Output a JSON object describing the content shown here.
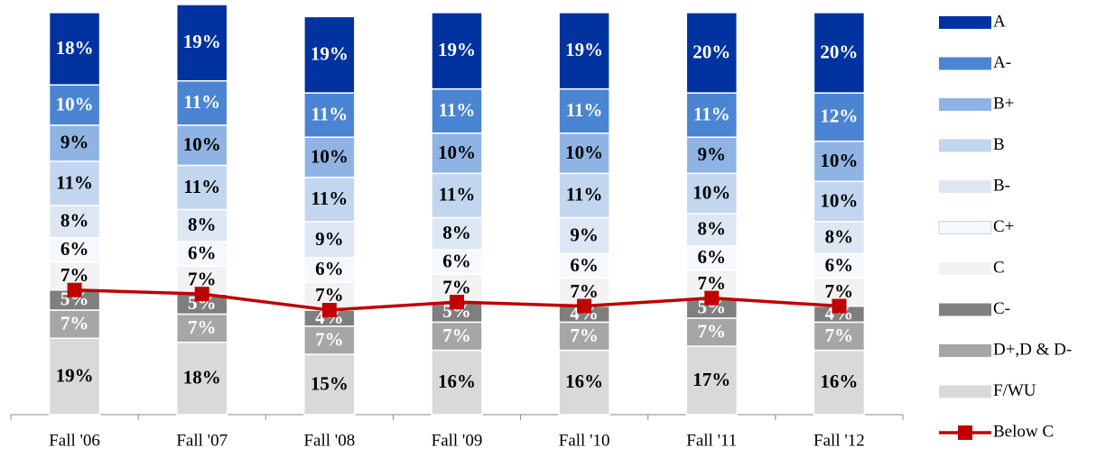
{
  "chart_data": {
    "type": "stacked_bar_line",
    "categories": [
      "Fall '06",
      "Fall '07",
      "Fall '08",
      "Fall '09",
      "Fall '10",
      "Fall '11",
      "Fall '12"
    ],
    "ylim": [
      0,
      102
    ],
    "series": [
      {
        "name": "F/WU",
        "color": "#d9d9d9",
        "label_color": "#000000",
        "values": [
          19,
          18,
          15,
          16,
          16,
          17,
          16
        ],
        "value_labels": [
          "19%",
          "18%",
          "15%",
          "16%",
          "16%",
          "17%",
          "16%"
        ]
      },
      {
        "name": "D+,D & D-",
        "color": "#a6a6a6",
        "label_color": "#ffffff",
        "values": [
          7,
          7,
          7,
          7,
          7,
          7,
          7
        ],
        "value_labels": [
          "7%",
          "7%",
          "7%",
          "7%",
          "7%",
          "7%",
          "7%"
        ]
      },
      {
        "name": "C-",
        "color": "#7f7f7f",
        "label_color": "#ffffff",
        "values": [
          5,
          5,
          4,
          5,
          4,
          5,
          4
        ],
        "value_labels": [
          "5%",
          "5%",
          "4%",
          "5%",
          "4%",
          "5%",
          "4%"
        ]
      },
      {
        "name": "C",
        "color": "#f2f2f2",
        "label_color": "#000000",
        "values": [
          7,
          7,
          7,
          7,
          7,
          7,
          7
        ],
        "value_labels": [
          "7%",
          "7%",
          "7%",
          "7%",
          "7%",
          "7%",
          "7%"
        ]
      },
      {
        "name": "C+",
        "color": "#f5f9fe",
        "label_color": "#000000",
        "values": [
          6,
          6,
          6,
          6,
          6,
          6,
          6
        ],
        "value_labels": [
          "6%",
          "6%",
          "6%",
          "6%",
          "6%",
          "6%",
          "6%"
        ]
      },
      {
        "name": "B-",
        "color": "#dde7f4",
        "label_color": "#000000",
        "values": [
          8,
          8,
          9,
          8,
          9,
          8,
          8
        ],
        "value_labels": [
          "8%",
          "8%",
          "9%",
          "8%",
          "9%",
          "8%",
          "8%"
        ]
      },
      {
        "name": "B",
        "color": "#c2d6ef",
        "label_color": "#000000",
        "values": [
          11,
          11,
          11,
          11,
          11,
          10,
          10
        ],
        "value_labels": [
          "11%",
          "11%",
          "11%",
          "11%",
          "11%",
          "10%",
          "10%"
        ]
      },
      {
        "name": "B+",
        "color": "#8fb4e3",
        "label_color": "#000000",
        "values": [
          9,
          10,
          10,
          10,
          10,
          9,
          10
        ],
        "value_labels": [
          "9%",
          "10%",
          "10%",
          "10%",
          "10%",
          "9%",
          "10%"
        ]
      },
      {
        "name": "A-",
        "color": "#4a84d2",
        "label_color": "#ffffff",
        "values": [
          10,
          11,
          11,
          11,
          11,
          11,
          12
        ],
        "value_labels": [
          "10%",
          "11%",
          "11%",
          "11%",
          "11%",
          "11%",
          "12%"
        ]
      },
      {
        "name": "A",
        "color": "#0033a0",
        "label_color": "#ffffff",
        "values": [
          18,
          19,
          19,
          19,
          19,
          20,
          20
        ],
        "value_labels": [
          "18%",
          "19%",
          "19%",
          "19%",
          "19%",
          "20%",
          "20%"
        ]
      }
    ],
    "line": {
      "name": "Below C",
      "color": "#c00000",
      "values": [
        31,
        30,
        26,
        28,
        27,
        29,
        27
      ]
    }
  }
}
